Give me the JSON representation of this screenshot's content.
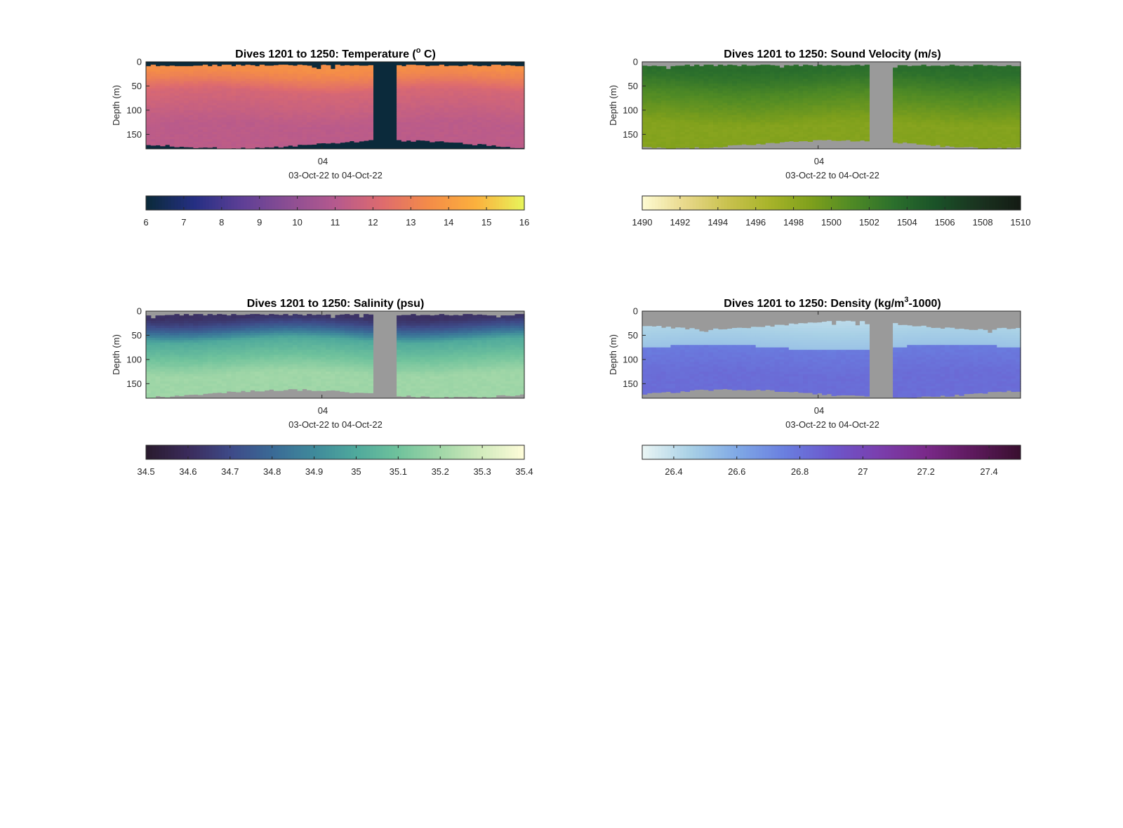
{
  "chart_data": [
    {
      "type": "heatmap",
      "title": "Dives 1201 to 1250: Temperature (° C)",
      "title_main": "Dives 1201 to 1250: Temperature (",
      "title_sup": "o",
      "title_end": " C)",
      "ylabel": "Depth (m)",
      "xtick_label": "04",
      "xlabel": "03-Oct-22 to 04-Oct-22",
      "yticks": [
        "0",
        "50",
        "100",
        "150"
      ],
      "ytick_values": [
        0,
        50,
        100,
        150
      ],
      "ylim": [
        0,
        180
      ],
      "y_reversed": true,
      "background": "#0b2a3b",
      "colorbar": {
        "ticks": [
          "6",
          "7",
          "8",
          "9",
          "10",
          "11",
          "12",
          "13",
          "14",
          "15",
          "16"
        ],
        "range": [
          6,
          16
        ],
        "colors": [
          "#0b2a3b",
          "#252f83",
          "#5d3f96",
          "#8b4e93",
          "#b5598e",
          "#de6b6e",
          "#f48c48",
          "#fbb03d",
          "#e8f35a"
        ]
      },
      "field": {
        "gap_dives": [
          1,
          1
        ],
        "dive_count": 50,
        "gap_start_fraction": 0.6,
        "gap_end_fraction": 0.66,
        "surface_value": 13.6,
        "mid_value": 12.0,
        "deep_value": 11.2
      }
    },
    {
      "type": "heatmap",
      "title": "Dives 1201 to 1250: Sound Velocity (m/s)",
      "title_main": "Dives 1201 to 1250: Sound Velocity (m/s)",
      "title_sup": "",
      "title_end": "",
      "ylabel": "Depth (m)",
      "xtick_label": "04",
      "xlabel": "03-Oct-22 to 04-Oct-22",
      "yticks": [
        "0",
        "50",
        "100",
        "150"
      ],
      "ytick_values": [
        0,
        50,
        100,
        150
      ],
      "ylim": [
        0,
        180
      ],
      "y_reversed": true,
      "background": "#9a9a9a",
      "colorbar": {
        "ticks": [
          "1490",
          "1492",
          "1494",
          "1496",
          "1498",
          "1500",
          "1502",
          "1504",
          "1506",
          "1508",
          "1510"
        ],
        "range": [
          1490,
          1510
        ],
        "colors": [
          "#fdfad0",
          "#e8d88a",
          "#c9c24f",
          "#a8b42a",
          "#7fa01c",
          "#4f8a25",
          "#2b6f2c",
          "#1a5228",
          "#1a3420",
          "#141c14"
        ]
      },
      "field": {
        "dive_count": 50,
        "gap_start_fraction": 0.6,
        "gap_end_fraction": 0.66,
        "surface_value": 1503.5,
        "mid_value": 1501.5,
        "deep_value": 1498.6
      }
    },
    {
      "type": "heatmap",
      "title": "Dives 1201 to 1250: Salinity (psu)",
      "title_main": "Dives 1201 to 1250: Salinity (psu)",
      "title_sup": "",
      "title_end": "",
      "ylabel": "Depth (m)",
      "xtick_label": "04",
      "xlabel": "03-Oct-22 to 04-Oct-22",
      "yticks": [
        "0",
        "50",
        "100",
        "150"
      ],
      "ytick_values": [
        0,
        50,
        100,
        150
      ],
      "ylim": [
        0,
        180
      ],
      "y_reversed": true,
      "background": "#9a9a9a",
      "colorbar": {
        "ticks": [
          "34.5",
          "34.6",
          "34.7",
          "34.8",
          "34.9",
          "35",
          "35.1",
          "35.2",
          "35.3",
          "35.4"
        ],
        "range": [
          34.5,
          35.4
        ],
        "colors": [
          "#2a1b2f",
          "#3b2c5c",
          "#3e4a88",
          "#3a6a96",
          "#3f8a9b",
          "#4fa99c",
          "#6fc29c",
          "#9fd6a7",
          "#d2ebbd",
          "#fdfcd8"
        ]
      },
      "field": {
        "dive_count": 50,
        "gap_start_fraction": 0.6,
        "gap_end_fraction": 0.66,
        "surface_value": 34.62,
        "mid_value": 35.0,
        "deep_value": 35.2
      }
    },
    {
      "type": "heatmap",
      "title": "Dives 1201 to 1250: Density (kg/m³-1000)",
      "title_main": "Dives 1201 to 1250: Density (kg/m",
      "title_sup": "3",
      "title_end": "-1000)",
      "ylabel": "Depth (m)",
      "xtick_label": "04",
      "xlabel": "03-Oct-22 to 04-Oct-22",
      "yticks": [
        "0",
        "50",
        "100",
        "150"
      ],
      "ytick_values": [
        0,
        50,
        100,
        150
      ],
      "ylim": [
        0,
        180
      ],
      "y_reversed": true,
      "background": "#9a9a9a",
      "colorbar": {
        "ticks": [
          "26.4",
          "26.6",
          "26.8",
          "27",
          "27.2",
          "27.4"
        ],
        "tick_values": [
          26.4,
          26.6,
          26.8,
          27.0,
          27.2,
          27.4
        ],
        "range": [
          26.3,
          27.5
        ],
        "colors": [
          "#e8f4f4",
          "#a8d0e6",
          "#7fa8e6",
          "#6a7fe0",
          "#6b58cc",
          "#7a3fae",
          "#7a2a8a",
          "#5e1a5e",
          "#3a0f30"
        ]
      },
      "field": {
        "dive_count": 50,
        "gap_start_fraction": 0.6,
        "gap_end_fraction": 0.66,
        "surface_value": 26.5,
        "mid_value": 26.75,
        "deep_value": 26.82
      }
    }
  ]
}
